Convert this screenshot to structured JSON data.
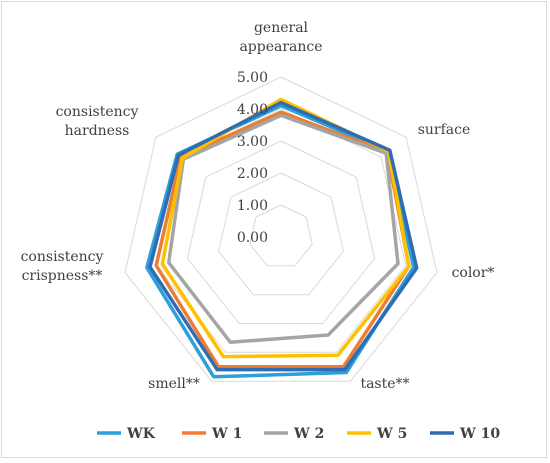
{
  "chart_data": {
    "type": "radar",
    "categories": [
      [
        "general",
        "appearance"
      ],
      [
        "surface"
      ],
      [
        "color*"
      ],
      [
        "taste**"
      ],
      [
        "smell**"
      ],
      [
        "consistency",
        "crispness**"
      ],
      [
        "consistency",
        "hardness"
      ]
    ],
    "ticks": [
      "0.00",
      "1.00",
      "2.00",
      "3.00",
      "4.00",
      "5.00"
    ],
    "range": [
      0,
      5
    ],
    "legend_position": "bottom",
    "series": [
      {
        "name": "WK",
        "color": "#2e9fd8",
        "values": [
          4.1,
          4.3,
          4.25,
          4.7,
          4.85,
          4.3,
          4.15
        ]
      },
      {
        "name": "W 1",
        "color": "#ed7d31",
        "values": [
          3.9,
          4.25,
          4.1,
          4.5,
          4.5,
          4.0,
          4.0
        ]
      },
      {
        "name": "W 2",
        "color": "#a5a5a5",
        "values": [
          3.8,
          4.2,
          3.75,
          3.4,
          3.65,
          3.6,
          3.9
        ]
      },
      {
        "name": "W 5",
        "color": "#ffc000",
        "values": [
          4.3,
          4.3,
          4.1,
          4.1,
          4.15,
          3.8,
          3.95
        ]
      },
      {
        "name": "W 10",
        "color": "#2e6db4",
        "values": [
          4.2,
          4.35,
          4.35,
          4.6,
          4.6,
          4.2,
          4.1
        ]
      }
    ]
  }
}
